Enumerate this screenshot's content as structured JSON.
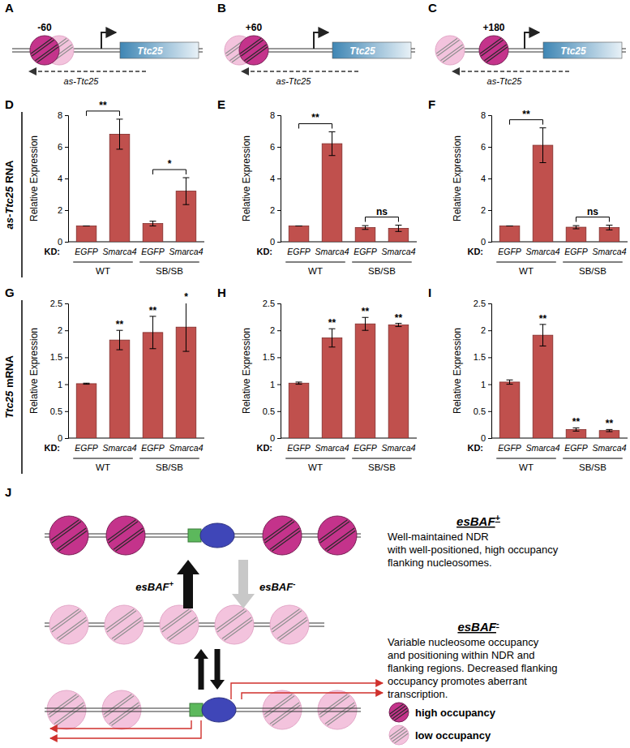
{
  "schematics": [
    {
      "panel": "A",
      "nucleosome_label": "-60",
      "gene": "Ttc25",
      "antisense": "as-Ttc25"
    },
    {
      "panel": "B",
      "nucleosome_label": "+60",
      "gene": "Ttc25",
      "antisense": "as-Ttc25"
    },
    {
      "panel": "C",
      "nucleosome_label": "+180",
      "gene": "Ttc25",
      "antisense": "as-Ttc25"
    }
  ],
  "chart_data": [
    {
      "panel": "D",
      "type": "bar",
      "row_label": {
        "gene": "as-Ttc25",
        "molecule": "RNA"
      },
      "y_label": "Relative Expression",
      "category_label": "KD:",
      "categories": [
        "EGFP",
        "Smarca4",
        "EGFP",
        "Smarca4"
      ],
      "groups": [
        {
          "label": "WT",
          "categories": [
            0,
            1
          ]
        },
        {
          "label": "SB/SB",
          "categories": [
            2,
            3
          ]
        }
      ],
      "values": [
        1,
        6.8,
        1.15,
        3.2
      ],
      "errors": [
        0,
        0.95,
        0.15,
        0.85
      ],
      "color": "#c0504d",
      "ylim": [
        0,
        8
      ],
      "yticks": [
        0,
        2,
        4,
        6,
        8
      ],
      "brackets": [
        {
          "text": "**",
          "categories": [
            0,
            1
          ]
        },
        {
          "text": "*",
          "categories": [
            2,
            3
          ]
        }
      ]
    },
    {
      "panel": "E",
      "type": "bar",
      "y_label": "Relative Expression",
      "category_label": "KD:",
      "categories": [
        "EGFP",
        "Smarca4",
        "EGFP",
        "Smarca4"
      ],
      "groups": [
        {
          "label": "WT",
          "categories": [
            0,
            1
          ]
        },
        {
          "label": "SB/SB",
          "categories": [
            2,
            3
          ]
        }
      ],
      "values": [
        1,
        6.2,
        0.9,
        0.85
      ],
      "errors": [
        0,
        0.75,
        0.12,
        0.2
      ],
      "color": "#c0504d",
      "ylim": [
        0,
        8
      ],
      "yticks": [
        0,
        2,
        4,
        6,
        8
      ],
      "brackets": [
        {
          "text": "**",
          "categories": [
            0,
            1
          ]
        },
        {
          "text": "ns",
          "categories": [
            2,
            3
          ]
        }
      ]
    },
    {
      "panel": "F",
      "type": "bar",
      "y_label": "Relative Expression",
      "category_label": "KD:",
      "categories": [
        "EGFP",
        "Smarca4",
        "EGFP",
        "Smarca4"
      ],
      "groups": [
        {
          "label": "WT",
          "categories": [
            0,
            1
          ]
        },
        {
          "label": "SB/SB",
          "categories": [
            2,
            3
          ]
        }
      ],
      "values": [
        1,
        6.1,
        0.92,
        0.9
      ],
      "errors": [
        0,
        1.1,
        0.1,
        0.15
      ],
      "color": "#c0504d",
      "ylim": [
        0,
        8
      ],
      "yticks": [
        0,
        2,
        4,
        6,
        8
      ],
      "brackets": [
        {
          "text": "**",
          "categories": [
            0,
            1
          ]
        },
        {
          "text": "ns",
          "categories": [
            2,
            3
          ]
        }
      ]
    },
    {
      "panel": "G",
      "type": "bar",
      "row_label": {
        "gene": "Ttc25",
        "molecule": "mRNA"
      },
      "y_label": "Relative Expression",
      "category_label": "KD:",
      "categories": [
        "EGFP",
        "Smarca4",
        "EGFP",
        "Smarca4"
      ],
      "groups": [
        {
          "label": "WT",
          "categories": [
            0,
            1
          ]
        },
        {
          "label": "SB/SB",
          "categories": [
            2,
            3
          ]
        }
      ],
      "values": [
        1.01,
        1.82,
        1.96,
        2.06
      ],
      "errors": [
        0.01,
        0.18,
        0.3,
        0.45
      ],
      "color": "#c0504d",
      "ylim": [
        0,
        2.5
      ],
      "yticks": [
        0,
        0.5,
        1,
        1.5,
        2,
        2.5
      ],
      "significance": [
        null,
        "**",
        "**",
        "*"
      ]
    },
    {
      "panel": "H",
      "type": "bar",
      "y_label": "Relative Expression",
      "category_label": "KD:",
      "categories": [
        "EGFP",
        "Smarca4",
        "EGFP",
        "Smarca4"
      ],
      "groups": [
        {
          "label": "WT",
          "categories": [
            0,
            1
          ]
        },
        {
          "label": "SB/SB",
          "categories": [
            2,
            3
          ]
        }
      ],
      "values": [
        1.02,
        1.86,
        2.12,
        2.1
      ],
      "errors": [
        0.02,
        0.17,
        0.12,
        0.03
      ],
      "color": "#c0504d",
      "ylim": [
        0,
        2.5
      ],
      "yticks": [
        0,
        0.5,
        1,
        1.5,
        2,
        2.5
      ],
      "significance": [
        null,
        "**",
        "**",
        "**"
      ]
    },
    {
      "panel": "I",
      "type": "bar",
      "y_label": "Relative Expression",
      "category_label": "KD:",
      "categories": [
        "EGFP",
        "Smarca4",
        "EGFP",
        "Smarca4"
      ],
      "groups": [
        {
          "label": "WT",
          "categories": [
            0,
            1
          ]
        },
        {
          "label": "SB/SB",
          "categories": [
            2,
            3
          ]
        }
      ],
      "values": [
        1.04,
        1.91,
        0.16,
        0.14
      ],
      "errors": [
        0.04,
        0.2,
        0.03,
        0.02
      ],
      "color": "#c0504d",
      "ylim": [
        0,
        2.5
      ],
      "yticks": [
        0,
        0.5,
        1,
        1.5,
        2,
        2.5
      ],
      "significance": [
        null,
        "**",
        "**",
        "**"
      ]
    }
  ],
  "model": {
    "panel": "J",
    "states": [
      {
        "name": "esBAF",
        "sup": "+",
        "description": [
          "Well-maintained NDR",
          "with well-positioned, high occupancy",
          "flanking nucleosomes."
        ]
      },
      {
        "name": "esBAF",
        "sup": "-",
        "description": [
          "Variable nucleosome occupancy",
          "and positioning within NDR and",
          "flanking regions. Decreased flanking",
          "occupancy promotes aberrant",
          "transcription."
        ]
      }
    ],
    "transitions": [
      {
        "name": "esBAF",
        "sup": "+"
      },
      {
        "name": "esBAF",
        "sup": "-"
      }
    ],
    "legend": [
      {
        "label": "high occupancy"
      },
      {
        "label": "low occupancy"
      }
    ]
  }
}
